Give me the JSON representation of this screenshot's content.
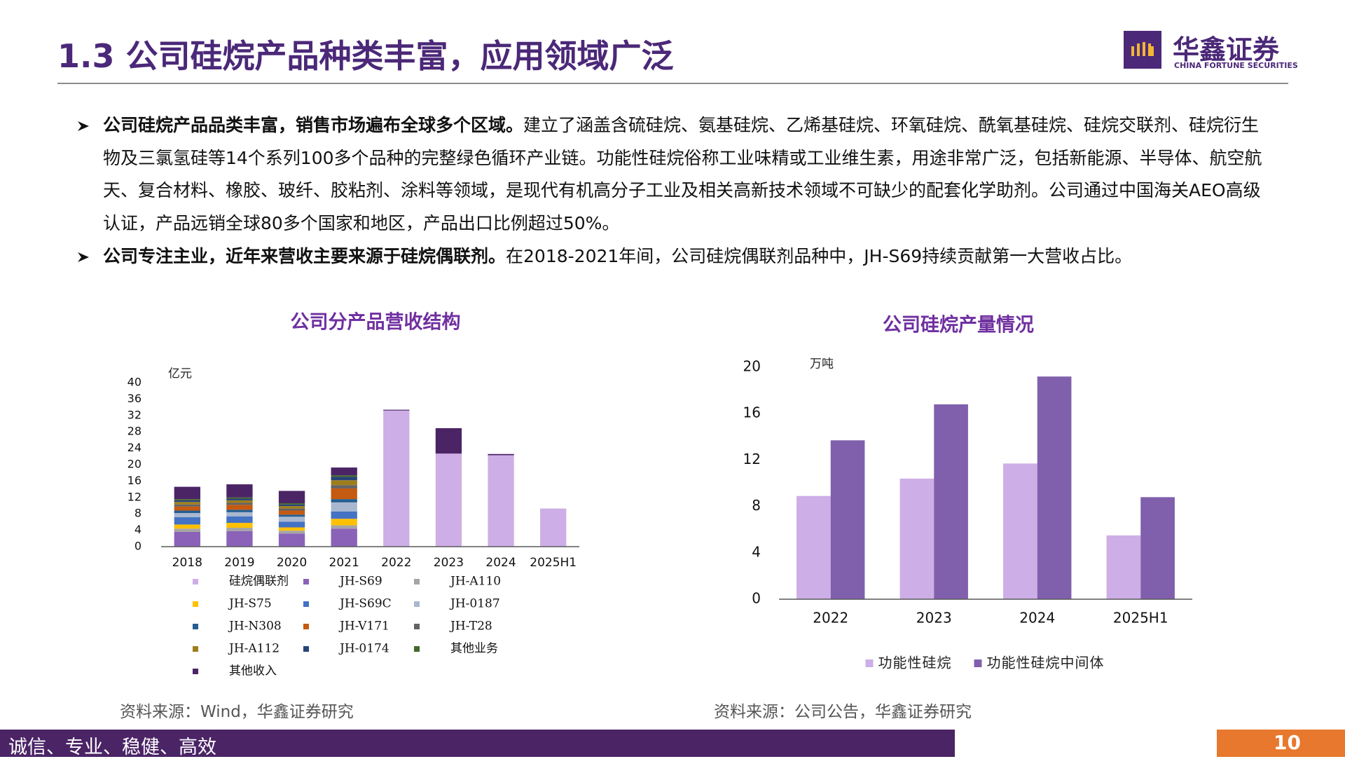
{
  "header": {
    "title": "1.3 公司硅烷产品种类丰富，应用领域广泛",
    "logo_name": "华鑫证券",
    "logo_sub": "CHINA FORTUNE SECURITIES"
  },
  "bullets": [
    {
      "bold": "公司硅烷产品品类丰富，销售市场遍布全球多个区域。",
      "text": "建立了涵盖含硫硅烷、氨基硅烷、乙烯基硅烷、环氧硅烷、酰氧基硅烷、硅烷交联剂、硅烷衍生物及三氯氢硅等14个系列100多个品种的完整绿色循环产业链。功能性硅烷俗称工业味精或工业维生素，用途非常广泛，包括新能源、半导体、航空航天、复合材料、橡胶、玻纤、胶粘剂、涂料等领域，是现代有机高分子工业及相关高新技术领域不可缺少的配套化学助剂。公司通过中国海关AEO高级认证，产品远销全球80多个国家和地区，产品出口比例超过50%。"
    },
    {
      "bold": "公司专注主业，近年来营收主要来源于硅烷偶联剂。",
      "text": "在2018-2021年间，公司硅烷偶联剂品种中，JH-S69持续贡献第一大营收占比。"
    }
  ],
  "chart_data": [
    {
      "type": "stacked_bar",
      "title": "公司分产品营收结构",
      "y_label": "亿元",
      "categories": [
        "2018",
        "2019",
        "2020",
        "2021",
        "2022",
        "2023",
        "2024",
        "2025H1"
      ],
      "ylim": [
        0,
        40
      ],
      "yticks": [
        0,
        4,
        8,
        12,
        16,
        20,
        24,
        28,
        32,
        36,
        40
      ],
      "series": [
        {
          "name": "硅烷偶联剂",
          "color": "#cdaee6",
          "values": [
            null,
            null,
            null,
            null,
            33.2,
            22.7,
            22.3,
            9.3
          ]
        },
        {
          "name": "JH-S69",
          "color": "#8a62b8",
          "values": [
            3.6,
            3.8,
            3.2,
            4.4,
            null,
            null,
            null,
            null
          ]
        },
        {
          "name": "JH-A110",
          "color": "#a5a5a5",
          "values": [
            0.8,
            0.8,
            0.7,
            0.8,
            null,
            null,
            null,
            null
          ]
        },
        {
          "name": "JH-S75",
          "color": "#ffc000",
          "values": [
            1.0,
            1.2,
            0.8,
            1.6,
            null,
            null,
            null,
            null
          ]
        },
        {
          "name": "JH-S69C",
          "color": "#4472c4",
          "values": [
            1.8,
            1.6,
            1.4,
            1.8,
            null,
            null,
            null,
            null
          ]
        },
        {
          "name": "JH-0187",
          "color": "#a9b8d0",
          "values": [
            1.0,
            1.0,
            1.2,
            2.2,
            null,
            null,
            null,
            null
          ]
        },
        {
          "name": "JH-N308",
          "color": "#255e91",
          "values": [
            0.6,
            0.6,
            0.5,
            0.8,
            null,
            null,
            null,
            null
          ]
        },
        {
          "name": "JH-V171",
          "color": "#c55a11",
          "values": [
            1.0,
            1.2,
            1.0,
            2.6,
            null,
            null,
            null,
            null
          ]
        },
        {
          "name": "JH-T28",
          "color": "#636363",
          "values": [
            0.5,
            0.5,
            0.5,
            0.8,
            null,
            null,
            null,
            null
          ]
        },
        {
          "name": "JH-A112",
          "color": "#9e7d1c",
          "values": [
            0.6,
            0.6,
            0.6,
            1.2,
            null,
            null,
            null,
            null
          ]
        },
        {
          "name": "JH-0174",
          "color": "#264478",
          "values": [
            0.4,
            0.4,
            0.4,
            0.8,
            null,
            null,
            null,
            null
          ]
        },
        {
          "name": "其他业务",
          "color": "#43682b",
          "values": [
            0.3,
            0.3,
            0.3,
            0.4,
            null,
            null,
            null,
            null
          ]
        },
        {
          "name": "其他收入",
          "color": "#4b2466",
          "values": [
            3.0,
            3.2,
            3.0,
            1.9,
            0.2,
            6.2,
            0.3,
            null
          ]
        }
      ]
    },
    {
      "type": "bar",
      "title": "公司硅烷产量情况",
      "y_label": "万吨",
      "categories": [
        "2022",
        "2023",
        "2024",
        "2025H1"
      ],
      "ylim": [
        0,
        20
      ],
      "yticks": [
        0,
        4,
        8,
        12,
        16,
        20
      ],
      "series": [
        {
          "name": "功能性硅烷",
          "color": "#cdaee6",
          "values": [
            8.9,
            10.4,
            11.7,
            5.5
          ]
        },
        {
          "name": "功能性硅烷中间体",
          "color": "#8060ad",
          "values": [
            13.7,
            16.8,
            19.2,
            8.8
          ]
        }
      ]
    }
  ],
  "sources": [
    "资料来源：Wind，华鑫证券研究",
    "资料来源：公司公告，华鑫证券研究"
  ],
  "footer": {
    "motto": "诚信、专业、稳健、高效",
    "page": "10"
  }
}
